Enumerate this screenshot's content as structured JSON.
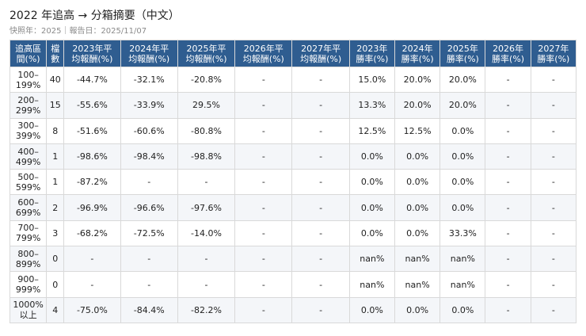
{
  "title": "2022 年追高 → 分箱摘要（中文）",
  "meta": "快照年：2025｜報告日：2025/11/07",
  "table": {
    "headers": [
      [
        "追高區",
        "間(%)"
      ],
      [
        "檔",
        "數"
      ],
      [
        "2023年平",
        "均報酬(%)"
      ],
      [
        "2024年平",
        "均報酬(%)"
      ],
      [
        "2025年平",
        "均報酬(%)"
      ],
      [
        "2026年平",
        "均報酬(%)"
      ],
      [
        "2027年平",
        "均報酬(%)"
      ],
      [
        "2023年",
        "勝率(%)"
      ],
      [
        "2024年",
        "勝率(%)"
      ],
      [
        "2025年",
        "勝率(%)"
      ],
      [
        "2026年",
        "勝率(%)"
      ],
      [
        "2027年",
        "勝率(%)"
      ]
    ],
    "rows": [
      [
        [
          "100–",
          "199%"
        ],
        "40",
        "-44.7%",
        "-32.1%",
        "-20.8%",
        "-",
        "-",
        "15.0%",
        "20.0%",
        "20.0%",
        "-",
        "-"
      ],
      [
        [
          "200–",
          "299%"
        ],
        "15",
        "-55.6%",
        "-33.9%",
        "29.5%",
        "-",
        "-",
        "13.3%",
        "20.0%",
        "20.0%",
        "-",
        "-"
      ],
      [
        [
          "300–",
          "399%"
        ],
        "8",
        "-51.6%",
        "-60.6%",
        "-80.8%",
        "-",
        "-",
        "12.5%",
        "12.5%",
        "0.0%",
        "-",
        "-"
      ],
      [
        [
          "400–",
          "499%"
        ],
        "1",
        "-98.6%",
        "-98.4%",
        "-98.8%",
        "-",
        "-",
        "0.0%",
        "0.0%",
        "0.0%",
        "-",
        "-"
      ],
      [
        [
          "500–",
          "599%"
        ],
        "1",
        "-87.2%",
        "-",
        "-",
        "-",
        "-",
        "0.0%",
        "0.0%",
        "0.0%",
        "-",
        "-"
      ],
      [
        [
          "600–",
          "699%"
        ],
        "2",
        "-96.9%",
        "-96.6%",
        "-97.6%",
        "-",
        "-",
        "0.0%",
        "0.0%",
        "0.0%",
        "-",
        "-"
      ],
      [
        [
          "700–",
          "799%"
        ],
        "3",
        "-68.2%",
        "-72.5%",
        "-14.0%",
        "-",
        "-",
        "0.0%",
        "0.0%",
        "33.3%",
        "-",
        "-"
      ],
      [
        [
          "800–",
          "899%"
        ],
        "0",
        "-",
        "-",
        "-",
        "-",
        "-",
        "nan%",
        "nan%",
        "nan%",
        "-",
        "-"
      ],
      [
        [
          "900–",
          "999%"
        ],
        "0",
        "-",
        "-",
        "-",
        "-",
        "-",
        "nan%",
        "nan%",
        "nan%",
        "-",
        "-"
      ],
      [
        [
          "1000%",
          "以上"
        ],
        "4",
        "-75.0%",
        "-84.4%",
        "-82.2%",
        "-",
        "-",
        "0.0%",
        "0.0%",
        "0.0%",
        "-",
        "-"
      ]
    ]
  }
}
